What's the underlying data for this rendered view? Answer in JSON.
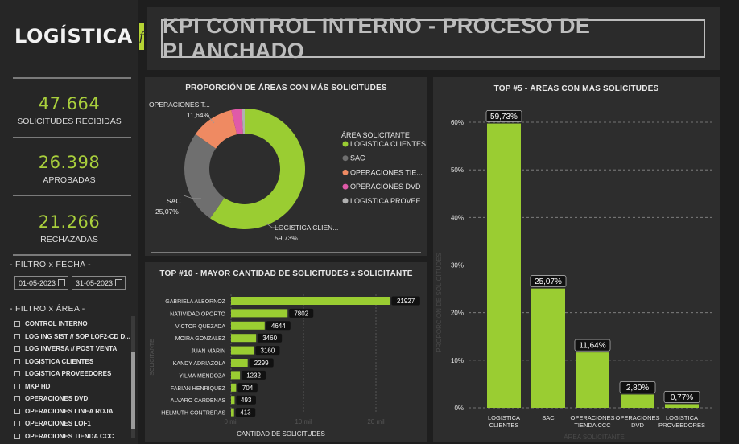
{
  "sidebar": {
    "logo_text": "LOGÍSTICA",
    "logo_mark": "f",
    "kpis": [
      {
        "value": "47.664",
        "label": "SOLICITUDES RECIBIDAS"
      },
      {
        "value": "26.398",
        "label": "APROBADAS"
      },
      {
        "value": "21.266",
        "label": "RECHAZADAS"
      }
    ],
    "date_filter": {
      "title": "- FILTRO x FECHA -",
      "start": "01-05-2023",
      "end": "31-05-2023"
    },
    "area_filter": {
      "title": "- FILTRO x ÁREA -",
      "items": [
        "CONTROL INTERNO",
        "LOG ING SIST // SOP LOF2-CD D...",
        "LOG INVERSA // POST VENTA",
        "LOGISTICA CLIENTES",
        "LOGISTICA PROVEEDORES",
        "MKP HD",
        "OPERACIONES DVD",
        "OPERACIONES LINEA ROJA",
        "OPERACIONES LOF1",
        "OPERACIONES TIENDA CCC"
      ]
    }
  },
  "header": {
    "title": "KPI CONTROL INTERNO - PROCESO DE PLANCHADO"
  },
  "donut": {
    "title": "PROPORCIÓN DE ÁREAS CON MÁS SOLICITUDES",
    "legend_title": "ÁREA SOLICITANTE",
    "legend": [
      "LOGISTICA CLIENTES",
      "SAC",
      "OPERACIONES TIE...",
      "OPERACIONES DVD",
      "LOGISTICA PROVEE..."
    ],
    "slice_labels": [
      {
        "name": "LOGISTICA CLIEN...",
        "value": "59,73%"
      },
      {
        "name": "SAC",
        "value": "25,07%"
      },
      {
        "name": "OPERACIONES T...",
        "value": "11,64%"
      }
    ]
  },
  "bars": {
    "title": "TOP #10 - MAYOR CANTIDAD DE SOLICITUDES x SOLICITANTE",
    "xlabel": "CANTIDAD DE SOLICITUDES",
    "ylabel": "SOLICITANTE",
    "ticks": [
      "0 mil",
      "10 mil",
      "20 mil"
    ]
  },
  "vbars": {
    "title": "TOP #5 - ÁREAS CON MÁS SOLICITUDES",
    "ylabel": "PROPORCIÓN DE SOLICITUDES",
    "xlabel": "ÁREA SOLICITANTE",
    "ticks": [
      "0%",
      "10%",
      "20%",
      "30%",
      "40%",
      "50%",
      "60%"
    ]
  },
  "colors": {
    "accent": "#a9cf3c",
    "bar": "#9acd32",
    "grey": "#6f6f6f",
    "orange": "#ef8a62",
    "pink": "#e05aa8",
    "lightgrey": "#b0b0b0"
  },
  "chart_data": [
    {
      "type": "pie",
      "title": "PROPORCIÓN DE ÁREAS CON MÁS SOLICITUDES",
      "categories": [
        "LOGISTICA CLIENTES",
        "SAC",
        "OPERACIONES TIENDA CCC",
        "OPERACIONES DVD",
        "LOGISTICA PROVEEDORES"
      ],
      "values": [
        59.73,
        25.07,
        11.64,
        2.8,
        0.77
      ],
      "donut": true,
      "legend": "right"
    },
    {
      "type": "bar",
      "orientation": "horizontal",
      "title": "TOP #10 - MAYOR CANTIDAD DE SOLICITUDES x SOLICITANTE",
      "categories": [
        "GABRIELA ALBORNOZ",
        "NATIVIDAD OPORTO",
        "VICTOR QUEZADA",
        "MOIRA GONZALEZ",
        "JUAN MARIN",
        "KANDY ADRIAZOLA",
        "YILMA MENDOZA",
        "FABIAN HENRIQUEZ",
        "ALVARO CARDENAS",
        "HELMUTH CONTRERAS"
      ],
      "values": [
        21927,
        7802,
        4644,
        3460,
        3160,
        2299,
        1232,
        704,
        493,
        413
      ],
      "xlabel": "CANTIDAD DE SOLICITUDES",
      "ylabel": "SOLICITANTE",
      "xlim": [
        0,
        25000
      ]
    },
    {
      "type": "bar",
      "title": "TOP #5 - ÁREAS CON MÁS SOLICITUDES",
      "categories": [
        "LOGISTICA CLIENTES",
        "SAC",
        "OPERACIONES TIENDA CCC",
        "OPERACIONES DVD",
        "LOGISTICA PROVEEDORES"
      ],
      "values": [
        59.73,
        25.07,
        11.64,
        2.8,
        0.77
      ],
      "data_labels": [
        "59,73%",
        "25,07%",
        "11,64%",
        "2,80%",
        "0,77%"
      ],
      "ylabel": "PROPORCIÓN DE SOLICITUDES",
      "xlabel": "ÁREA SOLICITANTE",
      "ylim": [
        0,
        60
      ],
      "grid": true
    }
  ]
}
